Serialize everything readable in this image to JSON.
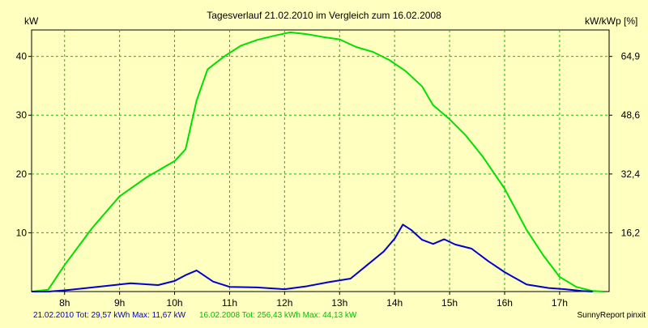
{
  "chart_data": {
    "type": "line",
    "title": "Tagesverlauf 21.02.2010 im Vergleich zum 16.02.2008",
    "ylabel_left": "kW",
    "ylabel_right": "kW/kWp [%]",
    "x_tick_labels": [
      "8h",
      "9h",
      "10h",
      "11h",
      "12h",
      "13h",
      "14h",
      "15h",
      "16h",
      "17h"
    ],
    "x_ticks": [
      8,
      9,
      10,
      11,
      12,
      13,
      14,
      15,
      16,
      17
    ],
    "xlim": [
      7.4,
      17.9
    ],
    "ylim": [
      0,
      44.5
    ],
    "y_ticks": [
      10,
      20,
      30,
      40
    ],
    "y_tick_labels": [
      "10",
      "20",
      "30",
      "40"
    ],
    "y2_ticks": [
      10,
      20,
      30,
      40
    ],
    "y2_tick_labels": [
      "16,2",
      "32,4",
      "48,6",
      "64,9"
    ],
    "grid": true,
    "series": [
      {
        "name": "16.02.2008",
        "color": "#00E000",
        "x": [
          7.4,
          7.7,
          8.0,
          8.5,
          9.0,
          9.5,
          10.0,
          10.2,
          10.4,
          10.6,
          10.9,
          11.2,
          11.5,
          11.8,
          12.1,
          12.4,
          12.7,
          13.0,
          13.3,
          13.6,
          13.9,
          14.2,
          14.5,
          14.7,
          15.0,
          15.3,
          15.6,
          16.0,
          16.4,
          16.7,
          17.0,
          17.3,
          17.6,
          17.8
        ],
        "y": [
          0,
          0.3,
          4.5,
          10.8,
          16.2,
          19.5,
          22.2,
          24.2,
          32.5,
          37.8,
          40.0,
          41.8,
          42.8,
          43.5,
          44.1,
          43.8,
          43.3,
          42.9,
          41.6,
          40.8,
          39.4,
          37.5,
          34.9,
          31.7,
          29.3,
          26.5,
          23.0,
          17.5,
          10.5,
          6.2,
          2.5,
          0.8,
          0.1,
          0
        ]
      },
      {
        "name": "21.02.2010",
        "color": "#0000D0",
        "x": [
          7.4,
          7.7,
          8.0,
          8.3,
          8.8,
          9.2,
          9.7,
          10.0,
          10.2,
          10.4,
          10.7,
          11.0,
          11.5,
          12.0,
          12.4,
          12.8,
          13.2,
          13.5,
          13.8,
          14.0,
          14.15,
          14.3,
          14.5,
          14.7,
          14.9,
          15.1,
          15.4,
          15.7,
          16.0,
          16.4,
          16.8,
          17.1,
          17.4,
          17.6
        ],
        "y": [
          0,
          0,
          0.2,
          0.5,
          1.0,
          1.4,
          1.1,
          1.8,
          2.8,
          3.6,
          1.7,
          0.8,
          0.7,
          0.4,
          0.9,
          1.6,
          2.2,
          4.5,
          6.8,
          9.0,
          11.4,
          10.5,
          8.8,
          8.1,
          8.9,
          8.0,
          7.3,
          5.2,
          3.3,
          1.2,
          0.6,
          0.4,
          0.1,
          0
        ]
      }
    ]
  },
  "footer": {
    "blue_summary": "21.02.2010 Tot: 29,57 kWh Max: 11,67 kW",
    "green_summary": "16.02.2008 Tot: 256,43 kWh Max: 44,13 kW",
    "credit": "SunnyReport pinxit"
  }
}
